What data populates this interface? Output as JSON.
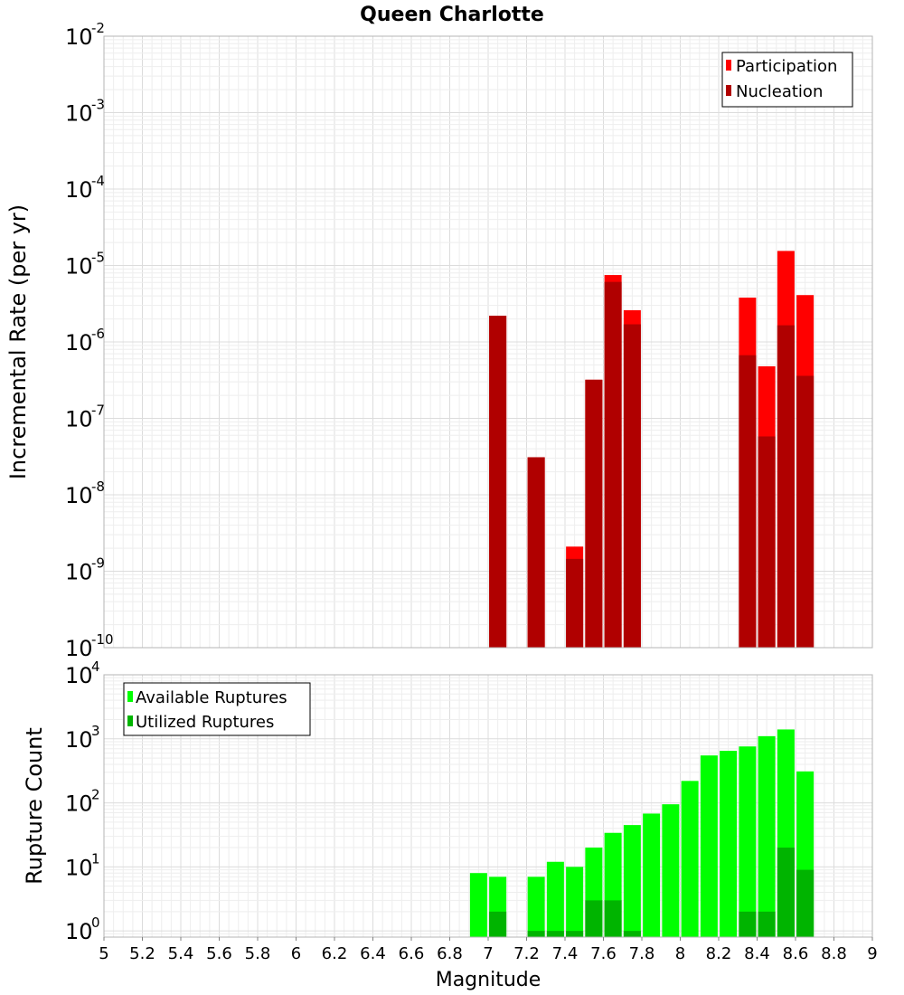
{
  "title": "Queen Charlotte",
  "colors": {
    "participation": "#ff0000",
    "nucleation": "#b00000",
    "available": "#00ff00",
    "utilized": "#00b400",
    "grid_major": "#dcdcdc",
    "grid_minor": "#eeeeee",
    "plot_border": "#b4b4b4"
  },
  "chart_data": [
    {
      "type": "bar",
      "scale": "log",
      "ylabel": "Incremental Rate (per yr)",
      "ylim": [
        1e-10,
        0.01
      ],
      "xlim": [
        5,
        9
      ],
      "legend_position": "top-right",
      "grid": true,
      "ytick_base": "10",
      "yticks": [
        {
          "exp": "-10"
        },
        {
          "exp": "-9"
        },
        {
          "exp": "-8"
        },
        {
          "exp": "-7"
        },
        {
          "exp": "-6"
        },
        {
          "exp": "-5"
        },
        {
          "exp": "-4"
        },
        {
          "exp": "-3"
        },
        {
          "exp": "-2"
        }
      ],
      "x": [
        7.05,
        7.25,
        7.45,
        7.55,
        7.65,
        7.75,
        8.35,
        8.45,
        8.55,
        8.65
      ],
      "series": [
        {
          "name": "Participation",
          "color": "participation",
          "values": [
            2.2e-06,
            3.1e-08,
            2.1e-09,
            3.2e-07,
            7.5e-06,
            2.6e-06,
            3.8e-06,
            4.8e-07,
            1.55e-05,
            4.1e-06
          ]
        },
        {
          "name": "Nucleation",
          "color": "nucleation",
          "values": [
            2.2e-06,
            3.1e-08,
            1.45e-09,
            3.2e-07,
            6.1e-06,
            1.7e-06,
            6.7e-07,
            5.8e-08,
            1.65e-06,
            3.6e-07
          ]
        }
      ]
    },
    {
      "type": "bar",
      "scale": "log",
      "ylabel": "Rupture Count",
      "xlabel": "Magnitude",
      "ylim": [
        0.8,
        10000.0
      ],
      "xlim": [
        5,
        9
      ],
      "legend_position": "top-left",
      "grid": true,
      "ytick_base": "10",
      "yticks": [
        {
          "exp": "0"
        },
        {
          "exp": "1"
        },
        {
          "exp": "2"
        },
        {
          "exp": "3"
        },
        {
          "exp": "4"
        }
      ],
      "xticks": [
        "5",
        "5.2",
        "5.4",
        "5.6",
        "5.8",
        "6",
        "6.2",
        "6.4",
        "6.6",
        "6.8",
        "7",
        "7.2",
        "7.4",
        "7.6",
        "7.8",
        "8",
        "8.2",
        "8.4",
        "8.6",
        "8.8",
        "9"
      ],
      "x": [
        6.95,
        7.05,
        7.25,
        7.35,
        7.45,
        7.55,
        7.65,
        7.75,
        7.85,
        7.95,
        8.05,
        8.15,
        8.25,
        8.35,
        8.45,
        8.55,
        8.65
      ],
      "series": [
        {
          "name": "Available Ruptures",
          "color": "available",
          "values": [
            8,
            7,
            7,
            12,
            10,
            20,
            34,
            45,
            68,
            95,
            220,
            550,
            650,
            760,
            1100,
            1400,
            310
          ]
        },
        {
          "name": "Utilized Ruptures",
          "color": "utilized",
          "values": [
            0,
            2,
            1,
            1,
            1,
            3,
            3,
            1,
            0,
            0,
            0,
            0,
            0,
            2,
            2,
            20,
            9
          ]
        }
      ]
    }
  ]
}
